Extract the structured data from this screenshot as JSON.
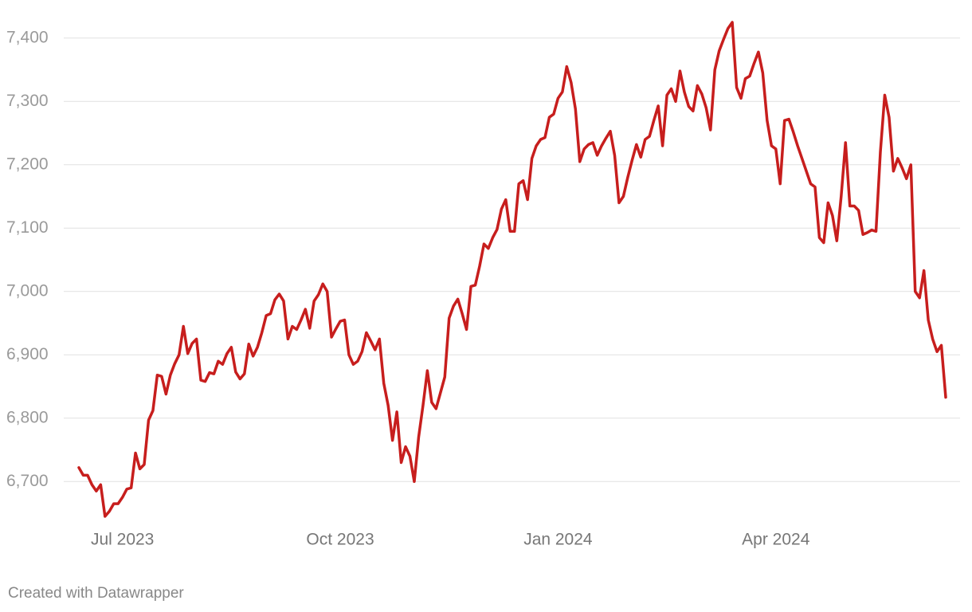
{
  "chart_data": {
    "type": "line",
    "color": "#c71e1d",
    "categories": [
      null,
      null,
      null,
      null,
      null,
      null,
      null,
      null,
      null,
      null,
      "Jul 2023",
      null,
      null,
      null,
      null,
      null,
      null,
      null,
      null,
      null,
      null,
      null,
      null,
      null,
      null,
      null,
      null,
      null,
      null,
      null,
      null,
      null,
      null,
      null,
      null,
      null,
      null,
      null,
      null,
      null,
      null,
      null,
      null,
      null,
      null,
      null,
      null,
      null,
      null,
      null,
      null,
      null,
      null,
      null,
      null,
      null,
      null,
      null,
      null,
      null,
      "Oct 2023",
      null,
      null,
      null,
      null,
      null,
      null,
      null,
      null,
      null,
      null,
      null,
      null,
      null,
      null,
      null,
      null,
      null,
      null,
      null,
      null,
      null,
      null,
      null,
      null,
      null,
      null,
      null,
      null,
      null,
      null,
      null,
      null,
      null,
      null,
      null,
      null,
      null,
      null,
      null,
      null,
      null,
      null,
      null,
      null,
      null,
      null,
      null,
      null,
      null,
      "Jan 2024",
      null,
      null,
      null,
      null,
      null,
      null,
      null,
      null,
      null,
      null,
      null,
      null,
      null,
      null,
      null,
      null,
      null,
      null,
      null,
      null,
      null,
      null,
      null,
      null,
      null,
      null,
      null,
      null,
      null,
      null,
      null,
      null,
      null,
      null,
      null,
      null,
      null,
      null,
      null,
      null,
      null,
      null,
      null,
      null,
      null,
      null,
      null,
      null,
      null,
      "Apr 2024",
      null,
      null,
      null,
      null,
      null,
      null,
      null,
      null,
      null,
      null,
      null,
      null,
      null,
      null,
      null,
      null,
      null,
      null,
      null,
      null,
      null,
      null,
      null,
      null,
      null,
      null,
      null,
      null,
      null,
      null,
      null,
      null,
      null,
      null,
      null,
      null,
      null,
      null,
      null
    ],
    "values": [
      6722,
      6710,
      6710,
      6695,
      6685,
      6695,
      6645,
      6653,
      6665,
      6665,
      6675,
      6688,
      6690,
      6745,
      6720,
      6727,
      6797,
      6812,
      6868,
      6866,
      6838,
      6868,
      6886,
      6900,
      6945,
      6902,
      6918,
      6925,
      6860,
      6858,
      6872,
      6870,
      6890,
      6885,
      6902,
      6912,
      6873,
      6862,
      6870,
      6917,
      6898,
      6912,
      6935,
      6962,
      6965,
      6987,
      6996,
      6985,
      6925,
      6945,
      6940,
      6955,
      6972,
      6942,
      6985,
      6995,
      7012,
      7000,
      6928,
      6941,
      6953,
      6955,
      6900,
      6885,
      6890,
      6905,
      6935,
      6922,
      6908,
      6925,
      6855,
      6820,
      6765,
      6810,
      6730,
      6755,
      6740,
      6700,
      6770,
      6820,
      6875,
      6825,
      6815,
      6840,
      6865,
      6958,
      6977,
      6988,
      6965,
      6940,
      7008,
      7010,
      7040,
      7075,
      7068,
      7085,
      7098,
      7130,
      7145,
      7095,
      7095,
      7170,
      7175,
      7145,
      7210,
      7230,
      7240,
      7243,
      7275,
      7280,
      7305,
      7315,
      7355,
      7330,
      7288,
      7205,
      7225,
      7232,
      7235,
      7215,
      7230,
      7242,
      7253,
      7215,
      7140,
      7150,
      7180,
      7207,
      7232,
      7212,
      7240,
      7245,
      7270,
      7293,
      7230,
      7310,
      7320,
      7300,
      7348,
      7315,
      7292,
      7285,
      7325,
      7312,
      7290,
      7255,
      7350,
      7380,
      7398,
      7415,
      7425,
      7322,
      7305,
      7336,
      7340,
      7360,
      7378,
      7345,
      7270,
      7230,
      7225,
      7170,
      7270,
      7272,
      7252,
      7230,
      7210,
      7190,
      7170,
      7165,
      7085,
      7077,
      7140,
      7120,
      7080,
      7150,
      7235,
      7135,
      7135,
      7128,
      7090,
      7093,
      7097,
      7095,
      7220,
      7310,
      7275,
      7190,
      7210,
      7195,
      7178,
      7200,
      7000,
      6990,
      7033,
      6955,
      6925,
      6905,
      6915,
      6833
    ],
    "ylim": [
      6640,
      7440
    ],
    "yticks": [
      {
        "value": 6700,
        "label": "6,700"
      },
      {
        "value": 6800,
        "label": "6,800"
      },
      {
        "value": 6900,
        "label": "6,900"
      },
      {
        "value": 7000,
        "label": "7,000"
      },
      {
        "value": 7100,
        "label": "7,100"
      },
      {
        "value": 7200,
        "label": "7,200"
      },
      {
        "value": 7300,
        "label": "7,300"
      },
      {
        "value": 7400,
        "label": "7,400"
      }
    ],
    "grid": true,
    "credit": "Created with Datawrapper"
  }
}
